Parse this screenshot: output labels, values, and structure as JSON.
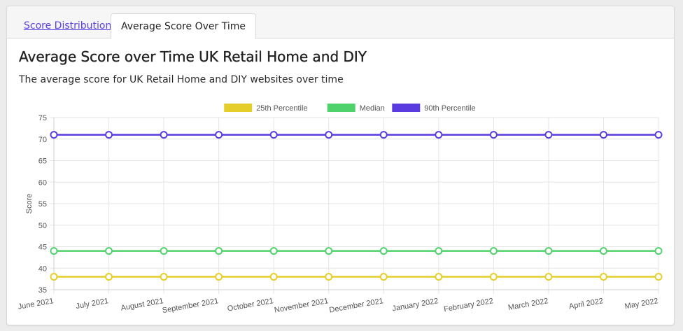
{
  "tabs": [
    {
      "label": "Score Distribution"
    },
    {
      "label": "Average Score Over Time"
    }
  ],
  "header": {
    "title": "Average Score over Time UK Retail Home and DIY",
    "subtitle": "The average score for UK Retail Home and DIY websites over time"
  },
  "colors": {
    "link": "#5b3fe0",
    "p25": "#e6ce2a",
    "median": "#4fd16b",
    "p90": "#5a3be0"
  },
  "chart_data": {
    "type": "line",
    "categories": [
      "June 2021",
      "July 2021",
      "August 2021",
      "September 2021",
      "October 2021",
      "November 2021",
      "December 2021",
      "January 2022",
      "February 2022",
      "March 2022",
      "April 2022",
      "May 2022"
    ],
    "series": [
      {
        "name": "25th Percentile",
        "color": "#e6ce2a",
        "values": [
          38,
          38,
          38,
          38,
          38,
          38,
          38,
          38,
          38,
          38,
          38,
          38
        ]
      },
      {
        "name": "Median",
        "color": "#4fd16b",
        "values": [
          44,
          44,
          44,
          44,
          44,
          44,
          44,
          44,
          44,
          44,
          44,
          44
        ]
      },
      {
        "name": "90th Percentile",
        "color": "#5a3be0",
        "values": [
          71,
          71,
          71,
          71,
          71,
          71,
          71,
          71,
          71,
          71,
          71,
          71
        ]
      }
    ],
    "ylabel": "Score",
    "xlabel": "",
    "ylim": [
      35,
      75
    ],
    "yticks": [
      35,
      40,
      45,
      50,
      55,
      60,
      65,
      70,
      75
    ],
    "grid": true,
    "legend": "top-center"
  }
}
